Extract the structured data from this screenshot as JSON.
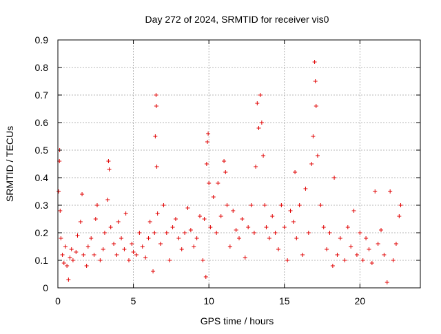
{
  "chart_data": {
    "type": "scatter",
    "title": "Day 272 of 2024, SRMTID for receiver vis0",
    "xlabel": "GPS time / hours",
    "ylabel": "SRMTID / TECUs",
    "xlim": [
      0,
      24.0
    ],
    "ylim": [
      0,
      0.9
    ],
    "xticks": [
      0,
      5,
      10,
      15,
      20
    ],
    "xtick_labels": [
      "0",
      "5",
      "10",
      "15",
      "20"
    ],
    "yticks": [
      0,
      0.1,
      0.2,
      0.3,
      0.4,
      0.5,
      0.6,
      0.7,
      0.8,
      0.9
    ],
    "ytick_labels": [
      "0",
      "0.1",
      "0.2",
      "0.3",
      "0.4",
      "0.5",
      "0.6",
      "0.7",
      "0.8",
      "0.9"
    ],
    "grid": true,
    "marker": "plus",
    "marker_color": "#e00000",
    "series": [
      {
        "name": "SRMTID",
        "points": [
          [
            0.05,
            0.35
          ],
          [
            0.1,
            0.46
          ],
          [
            0.12,
            0.5
          ],
          [
            0.15,
            0.28
          ],
          [
            0.2,
            0.18
          ],
          [
            0.3,
            0.12
          ],
          [
            0.4,
            0.09
          ],
          [
            0.5,
            0.15
          ],
          [
            0.6,
            0.08
          ],
          [
            0.7,
            0.03
          ],
          [
            0.8,
            0.11
          ],
          [
            0.9,
            0.14
          ],
          [
            1.0,
            0.1
          ],
          [
            1.2,
            0.13
          ],
          [
            1.3,
            0.19
          ],
          [
            1.5,
            0.24
          ],
          [
            1.6,
            0.34
          ],
          [
            1.7,
            0.12
          ],
          [
            1.9,
            0.08
          ],
          [
            2.0,
            0.15
          ],
          [
            2.2,
            0.18
          ],
          [
            2.4,
            0.12
          ],
          [
            2.5,
            0.25
          ],
          [
            2.6,
            0.3
          ],
          [
            2.8,
            0.1
          ],
          [
            3.0,
            0.14
          ],
          [
            3.1,
            0.2
          ],
          [
            3.3,
            0.32
          ],
          [
            3.35,
            0.46
          ],
          [
            3.4,
            0.43
          ],
          [
            3.5,
            0.22
          ],
          [
            3.7,
            0.16
          ],
          [
            3.9,
            0.12
          ],
          [
            4.0,
            0.24
          ],
          [
            4.2,
            0.18
          ],
          [
            4.4,
            0.14
          ],
          [
            4.5,
            0.27
          ],
          [
            4.7,
            0.1
          ],
          [
            4.9,
            0.16
          ],
          [
            5.0,
            0.13
          ],
          [
            5.2,
            0.12
          ],
          [
            5.4,
            0.2
          ],
          [
            5.6,
            0.15
          ],
          [
            5.8,
            0.11
          ],
          [
            6.0,
            0.18
          ],
          [
            6.1,
            0.24
          ],
          [
            6.3,
            0.06
          ],
          [
            6.4,
            0.2
          ],
          [
            6.45,
            0.55
          ],
          [
            6.5,
            0.7
          ],
          [
            6.52,
            0.66
          ],
          [
            6.55,
            0.44
          ],
          [
            6.6,
            0.27
          ],
          [
            6.8,
            0.16
          ],
          [
            7.0,
            0.3
          ],
          [
            7.2,
            0.2
          ],
          [
            7.4,
            0.1
          ],
          [
            7.6,
            0.22
          ],
          [
            7.8,
            0.25
          ],
          [
            8.0,
            0.18
          ],
          [
            8.2,
            0.14
          ],
          [
            8.4,
            0.2
          ],
          [
            8.6,
            0.29
          ],
          [
            8.8,
            0.21
          ],
          [
            9.0,
            0.15
          ],
          [
            9.2,
            0.18
          ],
          [
            9.4,
            0.26
          ],
          [
            9.6,
            0.1
          ],
          [
            9.7,
            0.25
          ],
          [
            9.8,
            0.04
          ],
          [
            9.85,
            0.45
          ],
          [
            9.9,
            0.53
          ],
          [
            9.95,
            0.56
          ],
          [
            10.0,
            0.38
          ],
          [
            10.1,
            0.22
          ],
          [
            10.3,
            0.33
          ],
          [
            10.5,
            0.2
          ],
          [
            10.6,
            0.38
          ],
          [
            10.8,
            0.26
          ],
          [
            11.0,
            0.46
          ],
          [
            11.1,
            0.42
          ],
          [
            11.2,
            0.3
          ],
          [
            11.4,
            0.15
          ],
          [
            11.6,
            0.28
          ],
          [
            11.8,
            0.21
          ],
          [
            12.0,
            0.18
          ],
          [
            12.2,
            0.25
          ],
          [
            12.4,
            0.11
          ],
          [
            12.6,
            0.22
          ],
          [
            12.8,
            0.3
          ],
          [
            13.0,
            0.2
          ],
          [
            13.1,
            0.44
          ],
          [
            13.2,
            0.67
          ],
          [
            13.3,
            0.58
          ],
          [
            13.4,
            0.7
          ],
          [
            13.5,
            0.6
          ],
          [
            13.6,
            0.48
          ],
          [
            13.7,
            0.3
          ],
          [
            13.8,
            0.22
          ],
          [
            14.0,
            0.18
          ],
          [
            14.2,
            0.26
          ],
          [
            14.4,
            0.2
          ],
          [
            14.6,
            0.14
          ],
          [
            14.8,
            0.3
          ],
          [
            15.0,
            0.22
          ],
          [
            15.2,
            0.1
          ],
          [
            15.4,
            0.28
          ],
          [
            15.6,
            0.24
          ],
          [
            15.7,
            0.42
          ],
          [
            15.8,
            0.18
          ],
          [
            16.0,
            0.3
          ],
          [
            16.2,
            0.12
          ],
          [
            16.4,
            0.36
          ],
          [
            16.6,
            0.2
          ],
          [
            16.8,
            0.45
          ],
          [
            16.9,
            0.55
          ],
          [
            17.0,
            0.82
          ],
          [
            17.05,
            0.75
          ],
          [
            17.1,
            0.66
          ],
          [
            17.2,
            0.48
          ],
          [
            17.4,
            0.3
          ],
          [
            17.6,
            0.22
          ],
          [
            17.8,
            0.14
          ],
          [
            18.0,
            0.2
          ],
          [
            18.2,
            0.08
          ],
          [
            18.3,
            0.4
          ],
          [
            18.5,
            0.12
          ],
          [
            18.7,
            0.18
          ],
          [
            19.0,
            0.1
          ],
          [
            19.2,
            0.22
          ],
          [
            19.4,
            0.15
          ],
          [
            19.6,
            0.28
          ],
          [
            19.8,
            0.12
          ],
          [
            20.0,
            0.2
          ],
          [
            20.2,
            0.1
          ],
          [
            20.4,
            0.18
          ],
          [
            20.6,
            0.14
          ],
          [
            20.8,
            0.09
          ],
          [
            21.0,
            0.35
          ],
          [
            21.2,
            0.16
          ],
          [
            21.4,
            0.21
          ],
          [
            21.6,
            0.12
          ],
          [
            21.8,
            0.02
          ],
          [
            22.0,
            0.35
          ],
          [
            22.2,
            0.1
          ],
          [
            22.4,
            0.16
          ],
          [
            22.6,
            0.26
          ],
          [
            22.7,
            0.3
          ]
        ]
      }
    ]
  }
}
